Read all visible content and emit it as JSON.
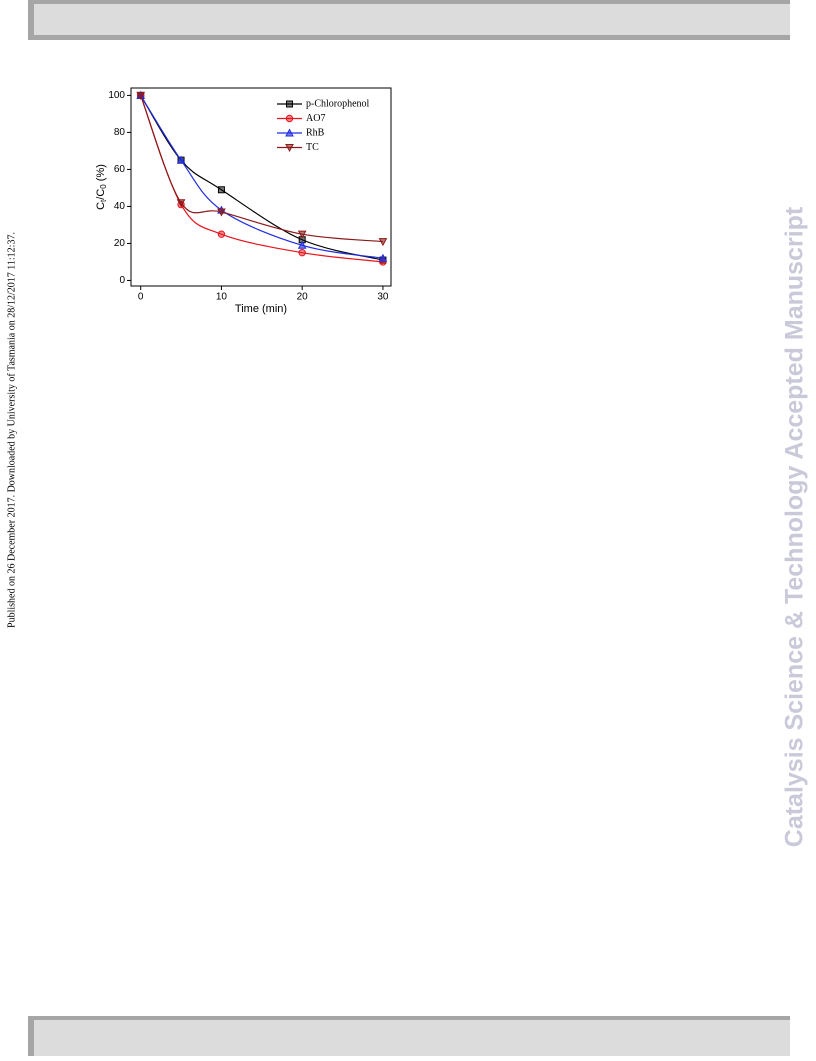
{
  "sidebar": "Published on 26 December 2017. Downloaded by University of Tasmania on 28/12/2017 11:12:37.",
  "watermark": "Catalysis Science & Technology Accepted Manuscript",
  "chart_data": {
    "type": "line",
    "ylabel_parts": [
      "C",
      "t",
      "/C",
      "0",
      " (%)"
    ],
    "xlabel": "Time (min)",
    "x": [
      0,
      5,
      10,
      20,
      30
    ],
    "xlim": [
      -1.2,
      31
    ],
    "xticks": [
      0,
      10,
      20,
      30
    ],
    "ylim": [
      -3,
      104
    ],
    "yticks": [
      0,
      20,
      40,
      60,
      80,
      100
    ],
    "legend": "top-right",
    "series": [
      {
        "name": "p-Chlorophenol",
        "color": "#000000",
        "marker": "square",
        "values": [
          100,
          65,
          49,
          22,
          11
        ]
      },
      {
        "name": "AO7",
        "color": "#e8141c",
        "marker": "circle",
        "values": [
          100,
          41,
          25,
          15,
          10
        ]
      },
      {
        "name": "RhB",
        "color": "#1f2de0",
        "marker": "triangle",
        "values": [
          100,
          65,
          38,
          19,
          12
        ]
      },
      {
        "name": "TC",
        "color": "#8b1a1a",
        "marker": "down-triangle",
        "values": [
          100,
          42,
          37,
          25,
          21
        ]
      }
    ]
  }
}
